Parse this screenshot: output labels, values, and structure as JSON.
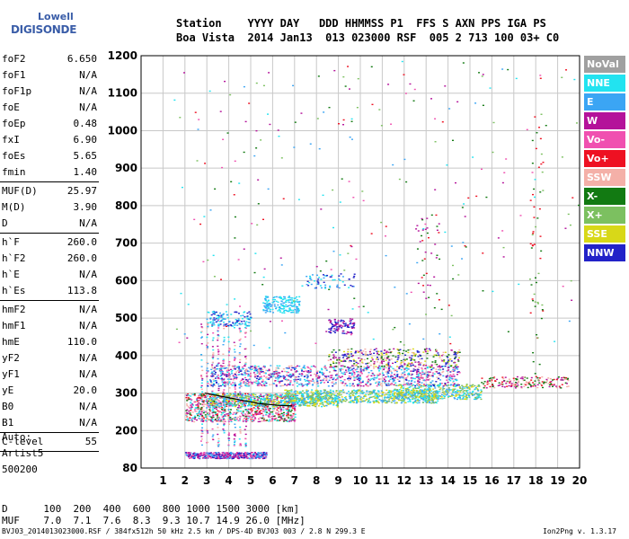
{
  "logo": {
    "line1": "Lowell",
    "line2": "DIGISONDE"
  },
  "header": {
    "line1": "Station    YYYY DAY   DDD HHMMSS P1  FFS S AXN PPS IGA PS",
    "line2": "Boa Vista  2014 Jan13  013 023000 RSF  005 2 713 100 03+ C0"
  },
  "params": [
    [
      {
        "k": "foF2",
        "v": "6.650"
      },
      {
        "k": "foF1",
        "v": "N/A"
      },
      {
        "k": "foF1p",
        "v": "N/A"
      },
      {
        "k": "foE",
        "v": "N/A"
      },
      {
        "k": "foEp",
        "v": "0.48"
      },
      {
        "k": "fxI",
        "v": "6.90"
      },
      {
        "k": "foEs",
        "v": "5.65"
      },
      {
        "k": "fmin",
        "v": "1.40"
      }
    ],
    [
      {
        "k": "MUF(D)",
        "v": "25.97"
      },
      {
        "k": "M(D)",
        "v": "3.90"
      },
      {
        "k": "D",
        "v": "N/A"
      }
    ],
    [
      {
        "k": "h`F",
        "v": "260.0"
      },
      {
        "k": "h`F2",
        "v": "260.0"
      },
      {
        "k": "h`E",
        "v": "N/A"
      },
      {
        "k": "h`Es",
        "v": "113.8"
      }
    ],
    [
      {
        "k": "hmF2",
        "v": "N/A"
      },
      {
        "k": "hmF1",
        "v": "N/A"
      },
      {
        "k": "hmE",
        "v": "110.0"
      },
      {
        "k": "yF2",
        "v": "N/A"
      },
      {
        "k": "yF1",
        "v": "N/A"
      },
      {
        "k": "yE",
        "v": "20.0"
      },
      {
        "k": "B0",
        "v": "N/A"
      },
      {
        "k": "B1",
        "v": "N/A"
      }
    ],
    [
      {
        "k": "C-level",
        "v": "55"
      }
    ]
  ],
  "auto": {
    "l1": "Auto:",
    "l2": "Artist5",
    "l3": "500200"
  },
  "legend": [
    {
      "label": "NoVal",
      "color": "#a0a0a0"
    },
    {
      "label": "NNE",
      "color": "#22e3f0"
    },
    {
      "label": "E",
      "color": "#3ba5f4"
    },
    {
      "label": "W",
      "color": "#b4129a"
    },
    {
      "label": "Vo-",
      "color": "#f050b0"
    },
    {
      "label": "Vo+",
      "color": "#ee1122"
    },
    {
      "label": "SSW",
      "color": "#f4b0a8"
    },
    {
      "label": "X-",
      "color": "#127a12"
    },
    {
      "label": "X+",
      "color": "#7cc060"
    },
    {
      "label": "SSE",
      "color": "#d8d818"
    },
    {
      "label": "NNW",
      "color": "#2222c8"
    }
  ],
  "chart_data": {
    "type": "scatter",
    "xticks": [
      "1",
      "2",
      "3",
      "4",
      "5",
      "6",
      "7",
      "8",
      "9",
      "10",
      "11",
      "12",
      "13",
      "14",
      "15",
      "16",
      "17",
      "18",
      "19",
      "20"
    ],
    "yticks": [
      "80",
      "200",
      "300",
      "400",
      "500",
      "600",
      "700",
      "800",
      "900",
      "1000",
      "1100",
      "1200"
    ],
    "xlim": [
      1,
      20
    ],
    "ylim": [
      80,
      1200
    ],
    "ticks": [
      80,
      200,
      300,
      400,
      500,
      600,
      700,
      800,
      900,
      1000,
      1100,
      1200
    ],
    "grid": true,
    "trace": {
      "x": [
        2.9,
        3.6,
        4.5,
        5.4,
        6.3,
        6.9
      ],
      "y": [
        300,
        292,
        282,
        272,
        267,
        266
      ]
    }
  },
  "bottom": {
    "line1": "D      100  200  400  600  800 1000 1500 3000 [km]",
    "line2": "MUF    7.0  7.1  7.6  8.3  9.3 10.7 14.9 26.0 [MHz]"
  },
  "footer": "BVJ03_2014013023000.RSF / 384fx512h 50 kHz 2.5 km / DPS-4D BVJ03 003 / 2.8 N 299.3 E",
  "version": "Ion2Png v. 1.3.17"
}
